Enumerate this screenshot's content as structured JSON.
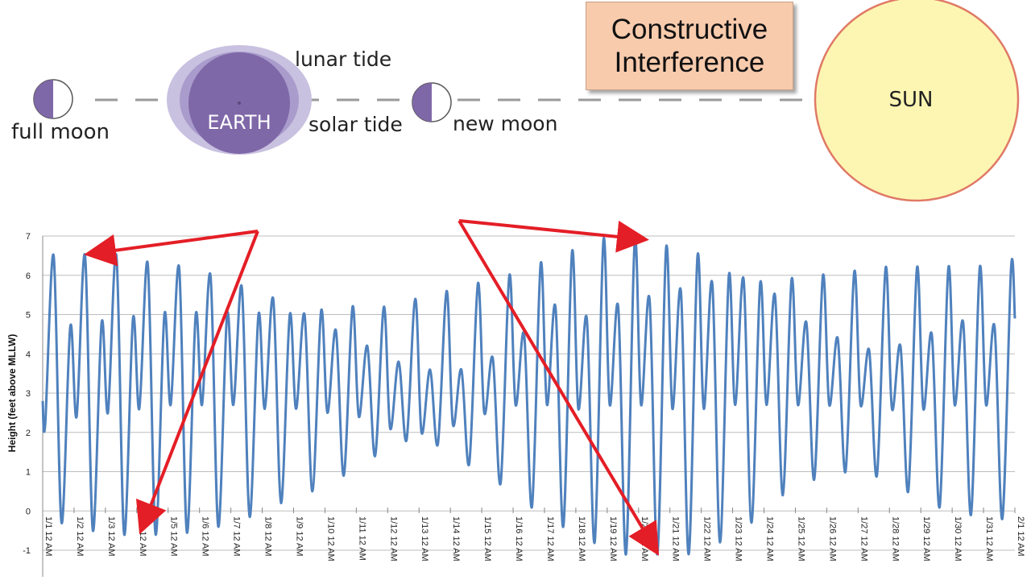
{
  "diagram": {
    "full_moon_label": "full moon",
    "new_moon_label": "new moon",
    "earth_label": "EARTH",
    "lunar_tide_label": "lunar tide",
    "solar_tide_label": "solar tide",
    "sun_label": "SUN",
    "callout": {
      "line1": "Constructive",
      "line2": "Interference"
    },
    "colors": {
      "earth": "#7f68a8",
      "tide_bulge": "#a99ccc",
      "sun_fill": "#fdf6b2",
      "sun_stroke": "#e07a66",
      "callout_bg": "#f8cbad",
      "arrow": "#e41e26"
    }
  },
  "chart_data": {
    "type": "line",
    "ylabel": "Height (feet above MLLW)",
    "ylim": [
      -1,
      7
    ],
    "yticks": [
      -1,
      0,
      1,
      2,
      3,
      4,
      5,
      6,
      7
    ],
    "grid": "horizontal",
    "x_tick_labels": [
      "1/1 12 AM",
      "1/2 12 AM",
      "1/3 12 AM",
      "1/4 12 AM",
      "1/5 12 AM",
      "1/6 12 AM",
      "1/7 12 AM",
      "1/8 12 AM",
      "1/9 12 AM",
      "1/10 12 AM",
      "1/11 12 AM",
      "1/12 12 AM",
      "1/13 12 AM",
      "1/14 12 AM",
      "1/15 12 AM",
      "1/16 12 AM",
      "1/17 12 AM",
      "1/18 12 AM",
      "1/19 12 AM",
      "1/20 12 AM",
      "1/21 12 AM",
      "1/22 12 AM",
      "1/23 12 AM",
      "1/24 12 AM",
      "1/25 12 AM",
      "1/26 12 AM",
      "1/27 12 AM",
      "1/28 12 AM",
      "1/29 12 AM",
      "1/30 12 AM",
      "1/31 12 AM",
      "2/1 12 AM"
    ],
    "series": [
      {
        "color": "#4f81bd",
        "x_unit": "days since 1/1 12 AM",
        "points": [
          [
            0.0,
            2.8
          ],
          [
            0.08,
            2.2
          ],
          [
            0.35,
            6.5
          ],
          [
            0.6,
            -0.3
          ],
          [
            0.88,
            4.7
          ],
          [
            1.08,
            2.4
          ],
          [
            1.35,
            6.5
          ],
          [
            1.6,
            -0.5
          ],
          [
            1.88,
            4.8
          ],
          [
            2.08,
            2.5
          ],
          [
            2.35,
            6.5
          ],
          [
            2.6,
            -0.6
          ],
          [
            2.88,
            4.9
          ],
          [
            3.08,
            2.6
          ],
          [
            3.35,
            6.3
          ],
          [
            3.6,
            -0.6
          ],
          [
            3.88,
            5.0
          ],
          [
            4.08,
            2.7
          ],
          [
            4.35,
            6.2
          ],
          [
            4.6,
            -0.55
          ],
          [
            4.88,
            5.0
          ],
          [
            5.08,
            2.7
          ],
          [
            5.35,
            6.0
          ],
          [
            5.6,
            -0.4
          ],
          [
            5.88,
            5.0
          ],
          [
            6.08,
            2.7
          ],
          [
            6.35,
            5.7
          ],
          [
            6.6,
            -0.15
          ],
          [
            6.88,
            5.0
          ],
          [
            7.08,
            2.6
          ],
          [
            7.35,
            5.4
          ],
          [
            7.6,
            0.2
          ],
          [
            7.88,
            5.0
          ],
          [
            8.08,
            2.6
          ],
          [
            8.35,
            5.0
          ],
          [
            8.6,
            0.5
          ],
          [
            8.88,
            5.1
          ],
          [
            9.08,
            2.5
          ],
          [
            9.35,
            4.6
          ],
          [
            9.6,
            0.9
          ],
          [
            9.88,
            5.2
          ],
          [
            10.08,
            2.4
          ],
          [
            10.35,
            4.2
          ],
          [
            10.6,
            1.4
          ],
          [
            10.88,
            5.2
          ],
          [
            11.08,
            2.1
          ],
          [
            11.35,
            3.8
          ],
          [
            11.6,
            1.8
          ],
          [
            11.88,
            5.4
          ],
          [
            12.08,
            2.0
          ],
          [
            12.35,
            3.6
          ],
          [
            12.6,
            1.7
          ],
          [
            12.88,
            5.6
          ],
          [
            13.08,
            2.2
          ],
          [
            13.35,
            3.6
          ],
          [
            13.6,
            1.2
          ],
          [
            13.88,
            5.8
          ],
          [
            14.08,
            2.5
          ],
          [
            14.35,
            3.9
          ],
          [
            14.6,
            0.7
          ],
          [
            14.88,
            6.0
          ],
          [
            15.08,
            2.7
          ],
          [
            15.35,
            4.5
          ],
          [
            15.6,
            0.1
          ],
          [
            15.88,
            6.3
          ],
          [
            16.08,
            2.7
          ],
          [
            16.35,
            5.2
          ],
          [
            16.6,
            -0.4
          ],
          [
            16.88,
            6.6
          ],
          [
            17.08,
            2.6
          ],
          [
            17.35,
            4.9
          ],
          [
            17.6,
            -0.8
          ],
          [
            17.88,
            6.9
          ],
          [
            18.08,
            2.7
          ],
          [
            18.35,
            5.2
          ],
          [
            18.6,
            -1.1
          ],
          [
            18.88,
            6.9
          ],
          [
            19.08,
            2.7
          ],
          [
            19.35,
            5.4
          ],
          [
            19.6,
            -1.1
          ],
          [
            19.88,
            6.7
          ],
          [
            20.08,
            2.6
          ],
          [
            20.35,
            5.6
          ],
          [
            20.6,
            -1.1
          ],
          [
            20.88,
            6.5
          ],
          [
            21.08,
            2.6
          ],
          [
            21.35,
            5.8
          ],
          [
            21.6,
            -0.8
          ],
          [
            21.88,
            6.0
          ],
          [
            22.08,
            2.7
          ],
          [
            22.35,
            5.9
          ],
          [
            22.6,
            -0.3
          ],
          [
            22.88,
            5.8
          ],
          [
            23.08,
            2.7
          ],
          [
            23.35,
            5.5
          ],
          [
            23.6,
            0.4
          ],
          [
            23.88,
            5.9
          ],
          [
            24.08,
            2.7
          ],
          [
            24.35,
            4.8
          ],
          [
            24.6,
            0.8
          ],
          [
            24.88,
            6.0
          ],
          [
            25.08,
            2.7
          ],
          [
            25.35,
            4.4
          ],
          [
            25.6,
            1.0
          ],
          [
            25.88,
            6.1
          ],
          [
            26.08,
            2.7
          ],
          [
            26.35,
            4.1
          ],
          [
            26.6,
            0.9
          ],
          [
            26.88,
            6.2
          ],
          [
            27.08,
            2.6
          ],
          [
            27.35,
            4.2
          ],
          [
            27.6,
            0.5
          ],
          [
            27.88,
            6.2
          ],
          [
            28.08,
            2.6
          ],
          [
            28.35,
            4.5
          ],
          [
            28.6,
            0.1
          ],
          [
            28.88,
            6.2
          ],
          [
            29.08,
            2.7
          ],
          [
            29.35,
            4.8
          ],
          [
            29.6,
            -0.1
          ],
          [
            29.88,
            6.2
          ],
          [
            30.08,
            2.7
          ],
          [
            30.35,
            4.7
          ],
          [
            30.6,
            -0.2
          ],
          [
            30.88,
            6.2
          ],
          [
            31.0,
            4.9
          ]
        ]
      }
    ]
  }
}
